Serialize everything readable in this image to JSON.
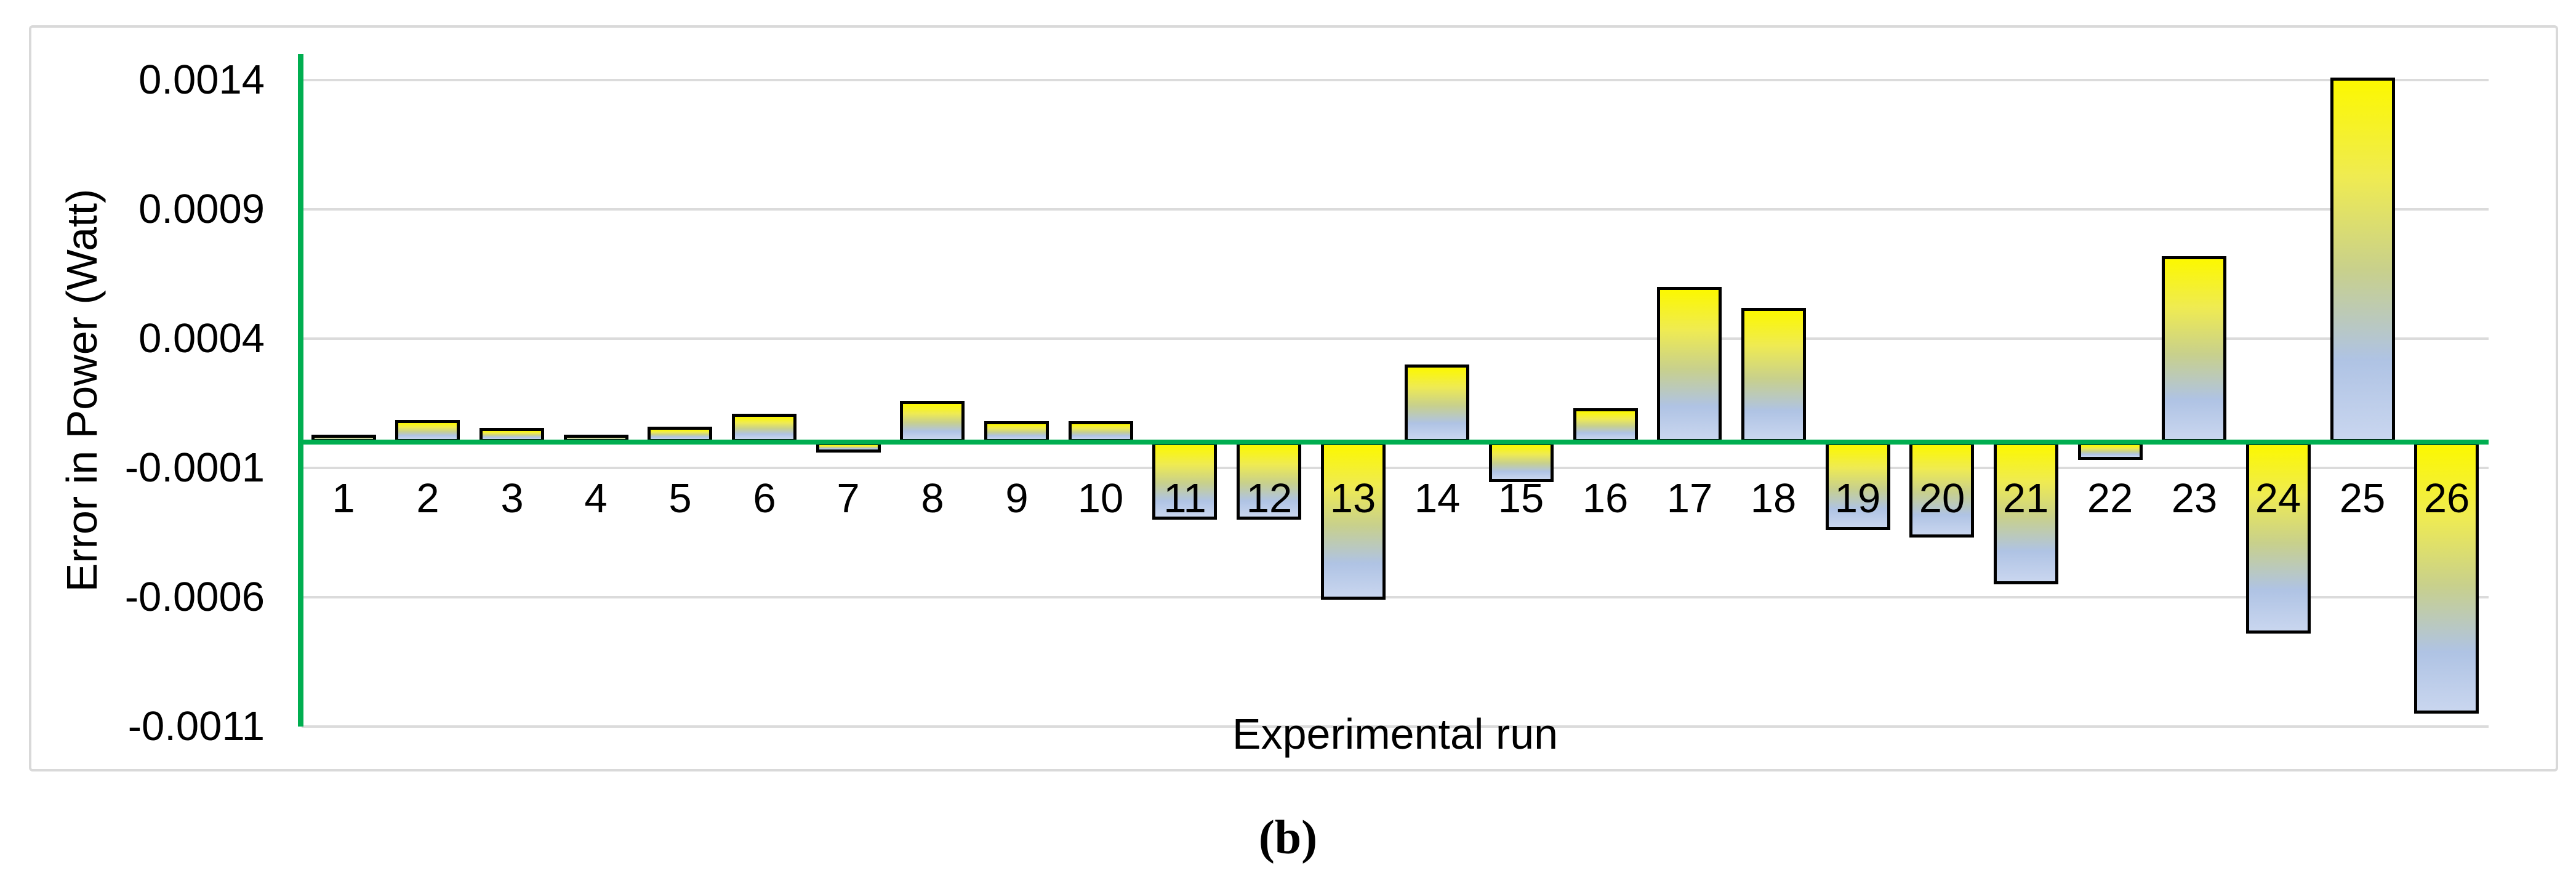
{
  "figure": {
    "caption": "(b)"
  },
  "chart_data": {
    "type": "bar",
    "title": "",
    "xlabel": "Experimental run",
    "ylabel": "Error in Power (Watt)",
    "categories": [
      "1",
      "2",
      "3",
      "4",
      "5",
      "6",
      "7",
      "8",
      "9",
      "10",
      "11",
      "12",
      "13",
      "14",
      "15",
      "16",
      "17",
      "18",
      "19",
      "20",
      "21",
      "22",
      "23",
      "24",
      "25",
      "26"
    ],
    "values": [
      1e-05,
      8.5e-05,
      5.5e-05,
      5e-06,
      6e-05,
      0.00011,
      -4e-05,
      0.00016,
      8e-05,
      8e-05,
      -0.0003,
      -0.0003,
      -0.00061,
      0.0003,
      -0.000155,
      0.00013,
      0.0006,
      0.00052,
      -0.00034,
      -0.00037,
      -0.00055,
      -7e-05,
      0.00072,
      -0.00074,
      0.00141,
      -0.00105
    ],
    "yticks": [
      0.0014,
      0.0009,
      0.0004,
      -0.0001,
      -0.0006,
      -0.0011
    ],
    "ytick_labels": [
      "0.0014",
      "0.0009",
      "0.0004",
      "-0.0001",
      "-0.0006",
      "-0.0011"
    ],
    "ylim": [
      -0.0011,
      0.0015
    ],
    "grid": true,
    "legend": false,
    "colors": {
      "axis_line": "#00AE50",
      "gridline": "#DBDBDB",
      "figure_border": "#D9D9D9",
      "bar_border": "#000000",
      "bar_gradient_top": "#FCF800",
      "bar_gradient_upper_mid": "#EFEB52",
      "bar_gradient_mid": "#C8D08C",
      "bar_gradient_lower_mid": "#AFC3E4",
      "bar_gradient_bottom": "#C9D6EF",
      "text": "#000000"
    }
  }
}
